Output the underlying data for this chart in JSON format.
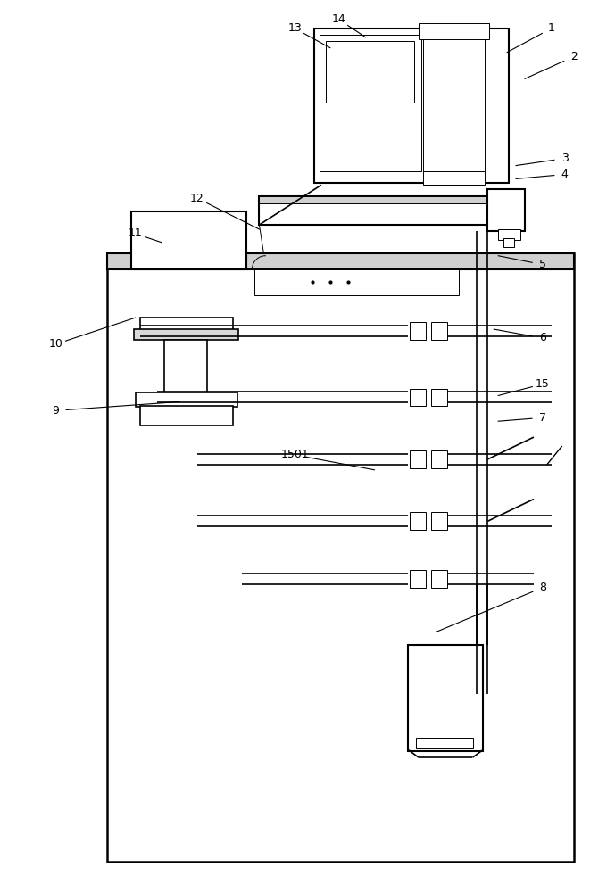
{
  "bg_color": "#ffffff",
  "lc": "#000000",
  "lw": 1.2,
  "tlw": 0.7,
  "fig_width": 6.89,
  "fig_height": 10.0,
  "labels_config": [
    [
      "1",
      620,
      28,
      570,
      55
    ],
    [
      "2",
      645,
      60,
      590,
      85
    ],
    [
      "3",
      635,
      175,
      580,
      183
    ],
    [
      "4",
      635,
      193,
      580,
      198
    ],
    [
      "5",
      610,
      295,
      560,
      285
    ],
    [
      "6",
      610,
      378,
      555,
      368
    ],
    [
      "7",
      610,
      468,
      560,
      472
    ],
    [
      "8",
      610,
      660,
      490,
      710
    ],
    [
      "9",
      60,
      460,
      200,
      450
    ],
    [
      "10",
      60,
      385,
      150,
      355
    ],
    [
      "11",
      150,
      260,
      180,
      270
    ],
    [
      "12",
      220,
      220,
      290,
      255
    ],
    [
      "13",
      330,
      28,
      370,
      50
    ],
    [
      "14",
      380,
      18,
      410,
      38
    ],
    [
      "15",
      610,
      430,
      560,
      443
    ],
    [
      "1501",
      330,
      510,
      420,
      527
    ]
  ]
}
